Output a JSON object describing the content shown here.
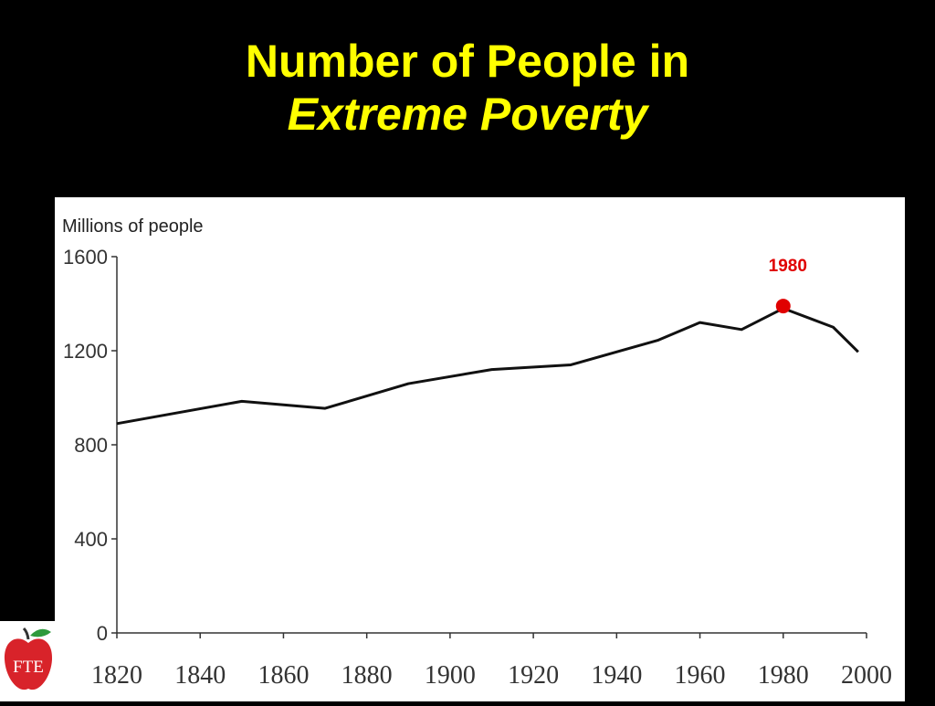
{
  "slide": {
    "title_line1": "Number of People in",
    "title_line2": "Extreme Poverty"
  },
  "logo": {
    "text": "FTE",
    "color": "#D8232A"
  },
  "chart_data": {
    "type": "line",
    "ylabel": "Millions of people",
    "xlabel": "",
    "xlim": [
      1820,
      2000
    ],
    "ylim": [
      0,
      1600
    ],
    "x_ticks": [
      1820,
      1840,
      1860,
      1880,
      1900,
      1920,
      1940,
      1960,
      1980,
      2000
    ],
    "y_ticks": [
      0,
      400,
      800,
      1200,
      1600
    ],
    "grid": false,
    "series": [
      {
        "x": [
          1820,
          1850,
          1870,
          1890,
          1910,
          1929,
          1950,
          1960,
          1970,
          1980,
          1992,
          1998
        ],
        "y": [
          890,
          985,
          955,
          1060,
          1120,
          1140,
          1245,
          1320,
          1290,
          1380,
          1300,
          1195
        ],
        "color": "#111111"
      }
    ],
    "annotations": [
      {
        "label": "1980",
        "x": 1980,
        "y": 1390,
        "color": "#E00000"
      }
    ]
  }
}
